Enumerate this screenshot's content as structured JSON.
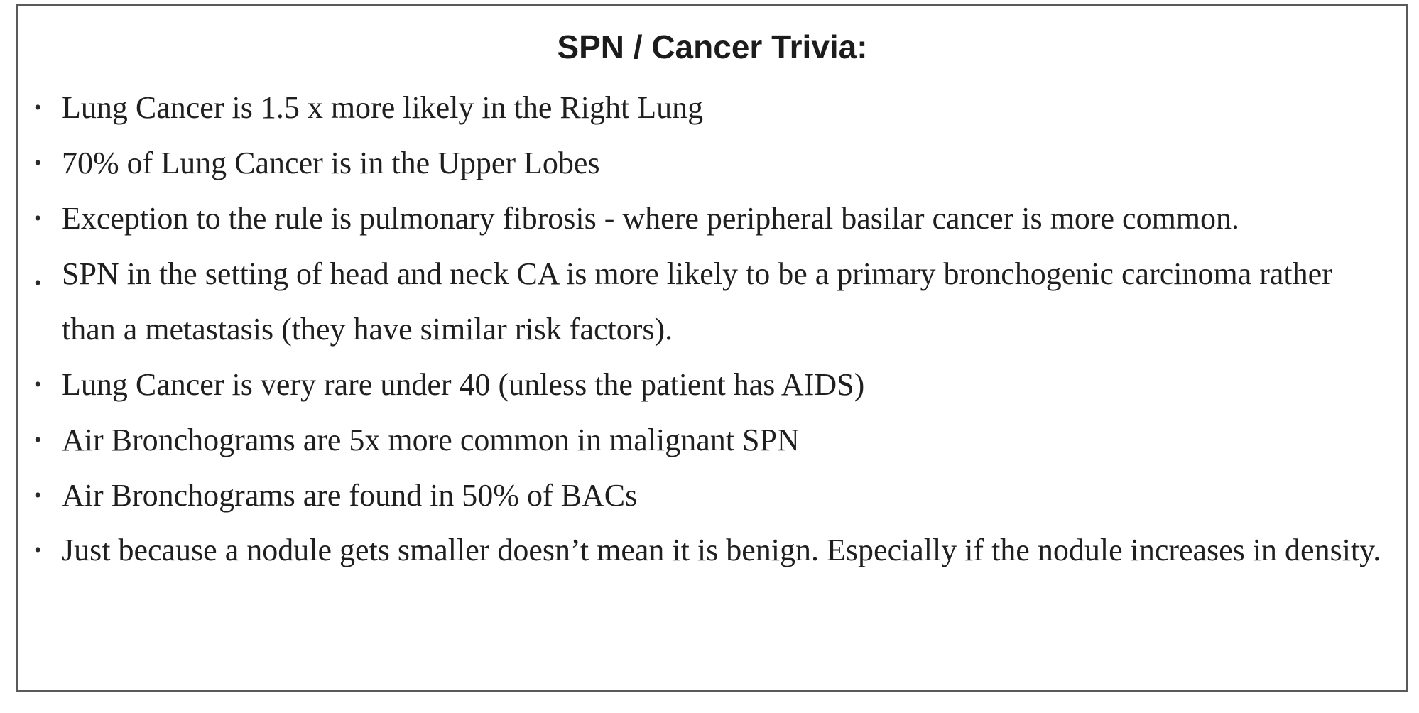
{
  "box": {
    "title": "SPN / Cancer Trivia:"
  },
  "items": [
    {
      "text": "Lung Cancer is 1.5 x more likely in the Right Lung"
    },
    {
      "text": "70% of Lung Cancer is in the Upper Lobes"
    },
    {
      "text": "Exception to the rule is pulmonary fibrosis - where peripheral basilar cancer is more common."
    },
    {
      "text": "SPN in the setting of head and neck CA is more likely to be a primary bronchogenic carcinoma rather than a metastasis (they have similar risk factors)."
    },
    {
      "text": "Lung Cancer is very rare under 40 (unless the patient has AIDS)"
    },
    {
      "text": "Air Bronchograms are 5x more common in malignant SPN"
    },
    {
      "text": "Air Bronchograms are found in 50% of BACs"
    },
    {
      "text": "Just because a nodule gets smaller doesn’t mean it is benign.  Especially if the nodule increases in density."
    }
  ]
}
